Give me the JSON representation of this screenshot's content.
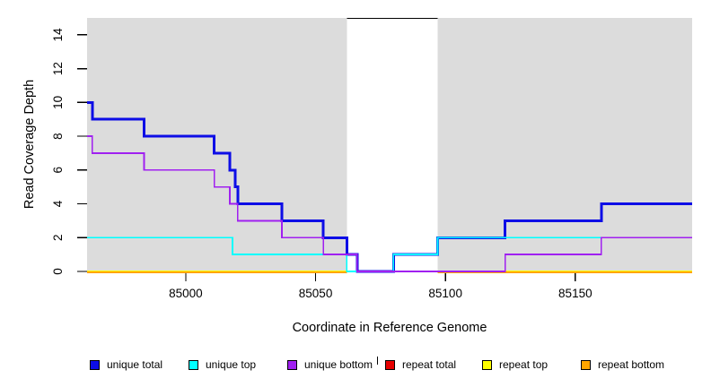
{
  "chart_data": {
    "type": "line",
    "subtype": "step-coverage",
    "title": "",
    "xlabel": "Coordinate in Reference Genome",
    "ylabel": "Read Coverage Depth",
    "xlim": [
      84962,
      85195
    ],
    "ylim": [
      0,
      15
    ],
    "xticks": [
      85000,
      85050,
      85100,
      85150
    ],
    "yticks": [
      0,
      2,
      4,
      6,
      8,
      10,
      12,
      14
    ],
    "grid": "off",
    "plot_bg": "#DCDCDC",
    "outer_bg": "#FFFFFF",
    "repeat_region": {
      "start": 85062,
      "end": 85097,
      "fill": "#FFFFFF",
      "marker_value": 15,
      "marker_color": "#000000"
    },
    "series": [
      {
        "name": "repeat total",
        "color": "#E60000",
        "width": 1.6,
        "segments": [
          {
            "steps": [
              [
                84962,
                0
              ]
            ],
            "end": 85062
          },
          {
            "steps": [
              [
                85097,
                0
              ]
            ],
            "end": 85195
          }
        ]
      },
      {
        "name": "repeat top",
        "color": "#FFFF00",
        "width": 1.6,
        "segments": [
          {
            "steps": [
              [
                84962,
                0
              ]
            ],
            "end": 85062
          },
          {
            "steps": [
              [
                85097,
                0
              ]
            ],
            "end": 85195
          }
        ]
      },
      {
        "name": "repeat bottom",
        "color": "#FFA500",
        "width": 2.2,
        "segments": [
          {
            "steps": [
              [
                84962,
                0
              ]
            ],
            "end": 85062
          },
          {
            "steps": [
              [
                85097,
                0
              ]
            ],
            "end": 85195
          }
        ]
      },
      {
        "name": "unique total",
        "color": "#0D0DE6",
        "width": 3,
        "segments": [
          {
            "steps": [
              [
                84962,
                10
              ],
              [
                84964,
                9
              ],
              [
                84984,
                8
              ],
              [
                85011,
                7
              ],
              [
                85017,
                6
              ],
              [
                85019,
                5
              ],
              [
                85020,
                4
              ],
              [
                85037,
                3
              ],
              [
                85053,
                2
              ],
              [
                85062,
                1
              ],
              [
                85066,
                0
              ],
              [
                85080,
                1
              ],
              [
                85097,
                2
              ],
              [
                85123,
                3
              ],
              [
                85160,
                4
              ]
            ],
            "end": 85195
          }
        ]
      },
      {
        "name": "unique top",
        "color": "#00FFFF",
        "width": 1.8,
        "segments": [
          {
            "steps": [
              [
                84962,
                2
              ],
              [
                85018,
                1
              ],
              [
                85062,
                0
              ],
              [
                85080,
                1
              ],
              [
                85097,
                2
              ]
            ],
            "end": 85195
          }
        ]
      },
      {
        "name": "unique bottom",
        "color": "#A020F0",
        "width": 1.8,
        "segments": [
          {
            "steps": [
              [
                84962,
                8
              ],
              [
                84964,
                7
              ],
              [
                84984,
                6
              ],
              [
                85011,
                5
              ],
              [
                85017,
                4
              ],
              [
                85020,
                3
              ],
              [
                85037,
                2
              ],
              [
                85053,
                1
              ],
              [
                85066,
                0
              ],
              [
                85123,
                1
              ],
              [
                85160,
                2
              ]
            ],
            "end": 85195
          }
        ]
      }
    ]
  },
  "legend": {
    "items": [
      {
        "label": "unique total",
        "color": "#0D0DE6"
      },
      {
        "label": "unique top",
        "color": "#00FFFF"
      },
      {
        "label": "unique bottom",
        "color": "#A020F0"
      },
      {
        "label": "repeat total",
        "color": "#E60000"
      },
      {
        "label": "repeat top",
        "color": "#FFFF00"
      },
      {
        "label": "repeat bottom",
        "color": "#FFA500"
      }
    ],
    "stray_mark": "'"
  }
}
